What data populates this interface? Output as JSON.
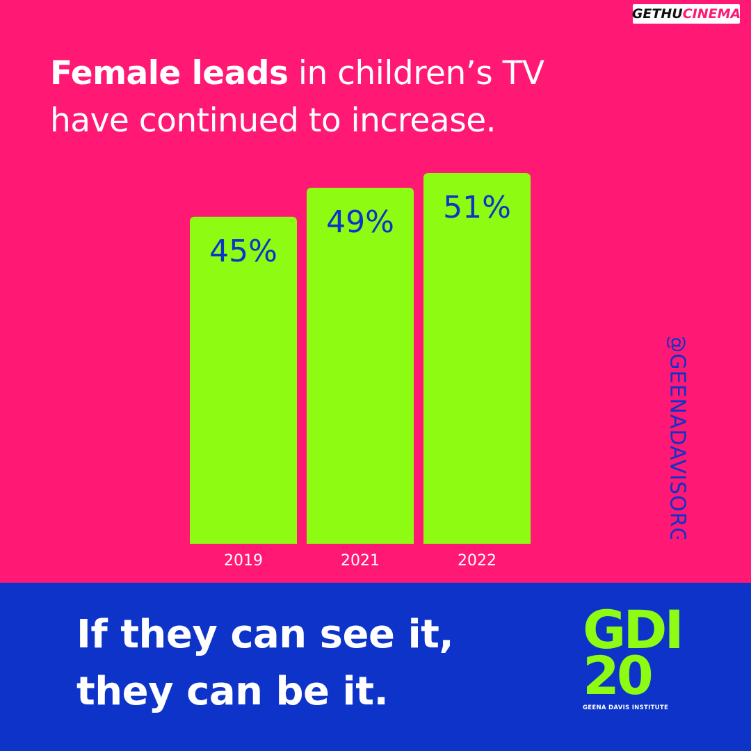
{
  "headline": {
    "bold": "Female leads",
    "rest_line1": " in children’s TV",
    "line2": "have continued to increase."
  },
  "watermark": {
    "part1": "GETHU",
    "part2": "CINEMA"
  },
  "handle": "@GEENADAVISORG",
  "slogan": {
    "line1": "If they can see it,",
    "line2": "they can be it."
  },
  "logo": {
    "line1": "GDI",
    "line2": "20",
    "name": "GEENA DAVIS INSTITUTE"
  },
  "colors": {
    "pink": "#FF1874",
    "blue": "#0D33C9",
    "lime": "#8EFB12",
    "white": "#FFFFFF"
  },
  "chart_data": {
    "type": "bar",
    "categories": [
      "2019",
      "2021",
      "2022"
    ],
    "values": [
      45,
      49,
      51
    ],
    "data_labels": [
      "45%",
      "49%",
      "51%"
    ],
    "title": "",
    "xlabel": "",
    "ylabel": "",
    "grid": false,
    "legend": "none"
  }
}
